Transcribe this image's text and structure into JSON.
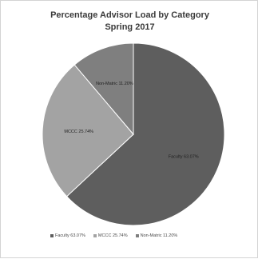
{
  "chart_data": {
    "type": "pie",
    "title": "Percentage Advisor Load by Category",
    "subtitle": "Spring 2017",
    "slices": [
      {
        "name": "Faculty",
        "value": 63.07,
        "label": "Faculty 63.07%",
        "color": "#5e5e5e"
      },
      {
        "name": "MCCC",
        "value": 25.74,
        "label": "MCCC 25.74%",
        "color": "#a3a3a3"
      },
      {
        "name": "Non-Matric",
        "value": 11.2,
        "label": "Non-Matric 11.20%",
        "color": "#7f7f7f"
      }
    ],
    "legend_position": "bottom"
  }
}
